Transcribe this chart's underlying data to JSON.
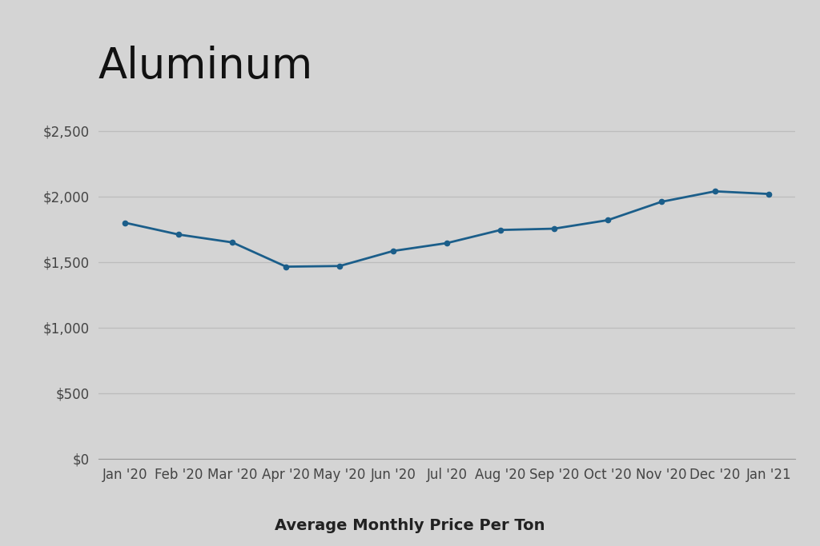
{
  "title": "Aluminum",
  "xlabel": "Average Monthly Price Per Ton",
  "categories": [
    "Jan '20",
    "Feb '20",
    "Mar '20",
    "Apr '20",
    "May '20",
    "Jun '20",
    "Jul '20",
    "Aug '20",
    "Sep '20",
    "Oct '20",
    "Nov '20",
    "Dec '20",
    "Jan '21"
  ],
  "values": [
    1800,
    1710,
    1650,
    1465,
    1470,
    1585,
    1645,
    1745,
    1755,
    1820,
    1960,
    2040,
    2020
  ],
  "line_color": "#1b5e8a",
  "marker_color": "#1b5e8a",
  "background_color": "#d4d4d4",
  "axes_background_color": "#d4d4d4",
  "grid_color": "#bcbcbc",
  "title_fontsize": 38,
  "tick_fontsize": 12,
  "xlabel_fontsize": 14,
  "ylim": [
    0,
    2750
  ],
  "yticks": [
    0,
    500,
    1000,
    1500,
    2000,
    2500
  ]
}
